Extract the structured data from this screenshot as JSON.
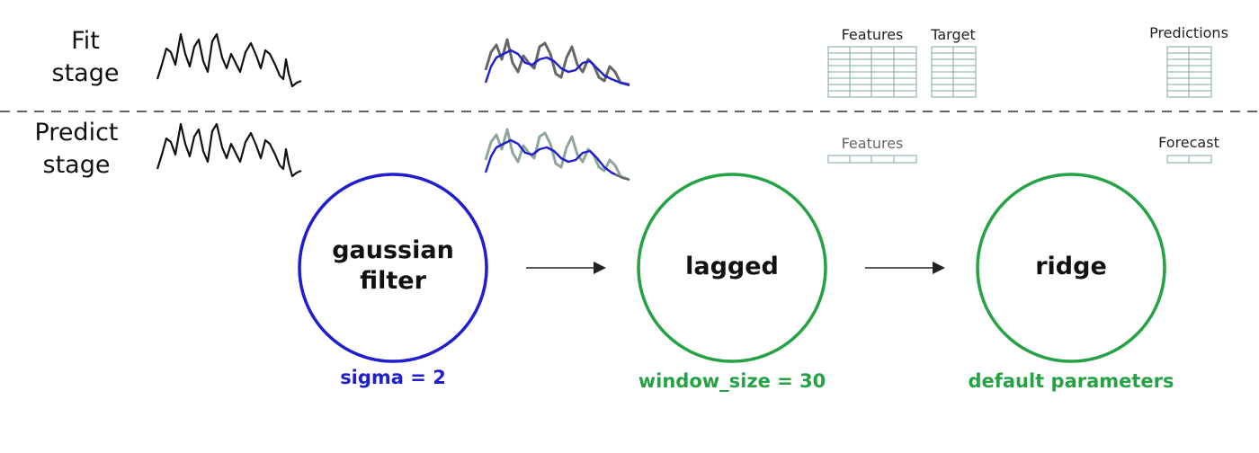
{
  "stages": {
    "fit": {
      "line1": "Fit",
      "line2": "stage"
    },
    "predict": {
      "line1": "Predict",
      "line2": "stage"
    }
  },
  "tables": {
    "fit_features": "Features",
    "fit_target": "Target",
    "fit_predictions": "Predictions",
    "predict_features": "Features",
    "predict_forecast": "Forecast"
  },
  "nodes": [
    {
      "line1": "gaussian",
      "line2": "filter",
      "param": "sigma = 2",
      "color": "#1f1fd0"
    },
    {
      "line1": "lagged",
      "line2": "",
      "param": "window_size = 30",
      "color": "#25a244"
    },
    {
      "line1": "ridge",
      "line2": "",
      "param": "default parameters",
      "color": "#25a244"
    }
  ],
  "colors": {
    "raw_series": "#111111",
    "smoothed_series": "#1f1fd0",
    "fit_overlay_series": "#666666",
    "predict_overlay_series": "#8fa59a",
    "table_grid": "#7fa89b",
    "divider": "#333333",
    "arrow": "#222222"
  }
}
